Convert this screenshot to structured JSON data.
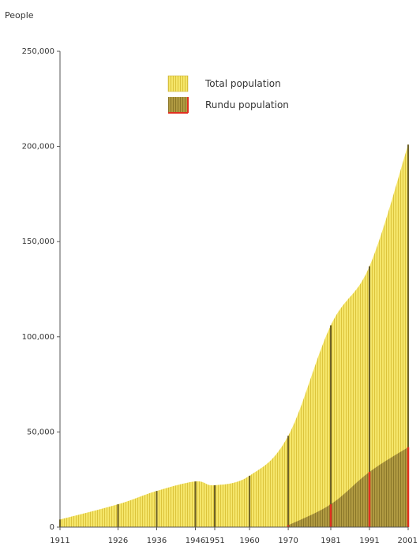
{
  "chart_data": {
    "type": "area",
    "ylabel": "People",
    "xlabel": "",
    "ylim": [
      0,
      250000
    ],
    "yticks": [
      0,
      50000,
      100000,
      150000,
      200000,
      250000
    ],
    "ytick_labels": [
      "0",
      "50,000",
      "100,000",
      "150,000",
      "200,000",
      "250,000"
    ],
    "x": [
      1911,
      1926,
      1936,
      1946,
      1951,
      1960,
      1970,
      1981,
      1991,
      2001
    ],
    "xtick_labels": [
      "1911",
      "1926",
      "1936",
      "1946",
      "1951",
      "1960",
      "1970",
      "1981",
      "1991",
      "2001"
    ],
    "series": [
      {
        "name": "Total population",
        "color": "#f2e25a",
        "values": [
          4000,
          12000,
          19000,
          24000,
          22000,
          27000,
          48000,
          106000,
          137000,
          201000
        ]
      },
      {
        "name": "Rundu population",
        "color": "#a8923a",
        "marker_color": "#e03020",
        "values": [
          0,
          0,
          0,
          0,
          0,
          0,
          1000,
          12000,
          29000,
          42000
        ]
      }
    ],
    "legend_position": "top-center",
    "grid": false
  }
}
